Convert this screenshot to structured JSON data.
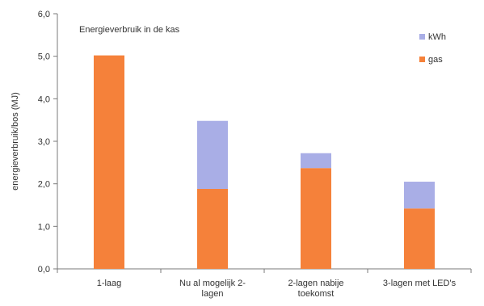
{
  "chart_data": {
    "type": "bar",
    "stacked": true,
    "title": "Energieverbruik in de kas",
    "ylabel": "energieverbruik/bos (MJ)",
    "xlabel": "",
    "ylim": [
      0,
      6
    ],
    "ytick_step": 1,
    "ytick_labels": [
      "0,0",
      "1,0",
      "2,0",
      "3,0",
      "4,0",
      "5,0",
      "6,0"
    ],
    "categories": [
      [
        "1-laag"
      ],
      [
        "Nu al mogelijk 2-",
        "lagen"
      ],
      [
        "2-lagen nabije",
        "toekomst"
      ],
      [
        "3-lagen met LED's"
      ]
    ],
    "series": [
      {
        "name": "gas",
        "color": "#f5813a",
        "values": [
          5.02,
          1.88,
          2.37,
          1.42
        ]
      },
      {
        "name": "kWh",
        "color": "#a9aee6",
        "values": [
          0.0,
          1.6,
          0.35,
          0.63
        ]
      }
    ],
    "legend": {
      "placement": "top-right",
      "order": [
        "kWh",
        "gas"
      ]
    },
    "grid": false
  }
}
